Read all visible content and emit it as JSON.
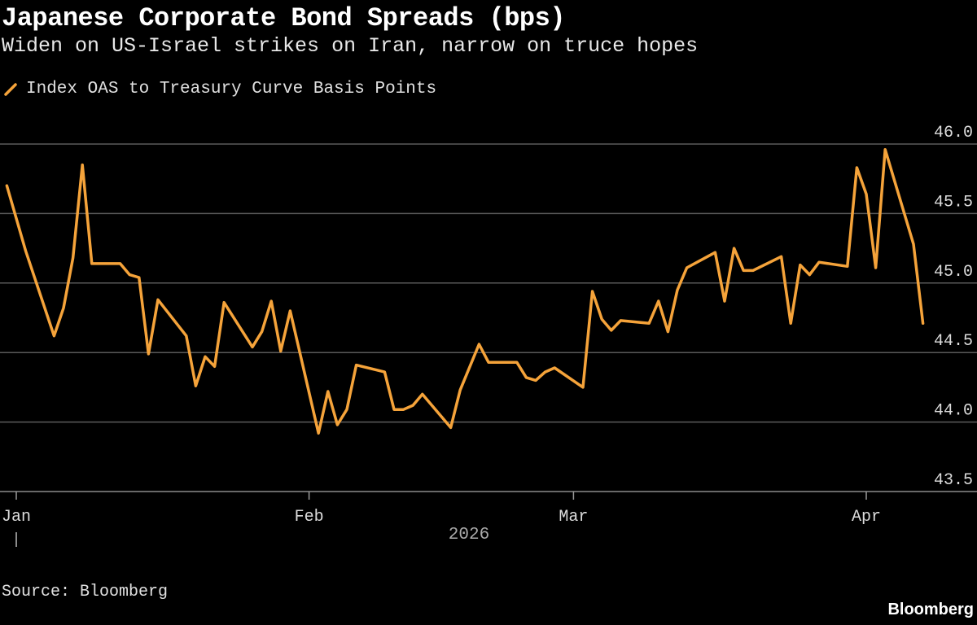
{
  "title": "Japanese Corporate Bond Spreads (bps)",
  "subtitle": "Widen on US-Israel strikes on Iran, narrow on truce hopes",
  "source": "Source: Bloomberg",
  "brand": "Bloomberg",
  "colors": {
    "background": "#000000",
    "series": "#f5a33a",
    "grid": "#5a5a5a",
    "text": "#dcdcdc"
  },
  "chart_data": {
    "type": "line",
    "title": "Japanese Corporate Bond Spreads (bps)",
    "subtitle": "Widen on US-Israel strikes on Iran, narrow on truce hopes",
    "xlabel": "2026",
    "ylabel": "",
    "ylim": [
      43.5,
      46.0
    ],
    "yticks": [
      "43.5",
      "44.0",
      "44.5",
      "45.0",
      "45.5",
      "46.0"
    ],
    "xticks": [
      {
        "date": "2026-01-01",
        "label": "Jan"
      },
      {
        "date": "2026-02-01",
        "label": "Feb"
      },
      {
        "date": "2026-03-01",
        "label": "Mar"
      },
      {
        "date": "2026-04-01",
        "label": "Apr"
      }
    ],
    "year_label": "2026",
    "grid": true,
    "legend_position": "top-left",
    "series": [
      {
        "name": "Index OAS to Treasury Curve Basis Points",
        "color": "#f5a33a",
        "x": [
          "2025-12-31",
          "2026-01-02",
          "2026-01-05",
          "2026-01-06",
          "2026-01-07",
          "2026-01-08",
          "2026-01-09",
          "2026-01-12",
          "2026-01-13",
          "2026-01-14",
          "2026-01-15",
          "2026-01-16",
          "2026-01-19",
          "2026-01-20",
          "2026-01-21",
          "2026-01-22",
          "2026-01-23",
          "2026-01-26",
          "2026-01-27",
          "2026-01-28",
          "2026-01-29",
          "2026-01-30",
          "2026-02-02",
          "2026-02-03",
          "2026-02-04",
          "2026-02-05",
          "2026-02-06",
          "2026-02-09",
          "2026-02-10",
          "2026-02-11",
          "2026-02-12",
          "2026-02-13",
          "2026-02-16",
          "2026-02-17",
          "2026-02-19",
          "2026-02-20",
          "2026-02-23",
          "2026-02-24",
          "2026-02-25",
          "2026-02-26",
          "2026-02-27",
          "2026-03-02",
          "2026-03-03",
          "2026-03-04",
          "2026-03-05",
          "2026-03-06",
          "2026-03-09",
          "2026-03-10",
          "2026-03-11",
          "2026-03-12",
          "2026-03-13",
          "2026-03-16",
          "2026-03-17",
          "2026-03-18",
          "2026-03-19",
          "2026-03-20",
          "2026-03-23",
          "2026-03-24",
          "2026-03-25",
          "2026-03-26",
          "2026-03-27",
          "2026-03-30",
          "2026-03-31",
          "2026-04-01",
          "2026-04-02",
          "2026-04-03",
          "2026-04-06",
          "2026-04-07"
        ],
        "values": [
          45.7,
          45.23,
          44.62,
          44.82,
          45.18,
          45.85,
          45.14,
          45.14,
          45.06,
          45.04,
          44.49,
          44.88,
          44.62,
          44.26,
          44.47,
          44.4,
          44.86,
          44.54,
          44.65,
          44.87,
          44.51,
          44.8,
          43.92,
          44.22,
          43.98,
          44.09,
          44.41,
          44.36,
          44.09,
          44.09,
          44.12,
          44.2,
          43.96,
          44.23,
          44.56,
          44.43,
          44.43,
          44.32,
          44.3,
          44.36,
          44.39,
          44.25,
          44.94,
          44.74,
          44.66,
          44.73,
          44.71,
          44.87,
          44.65,
          44.95,
          45.11,
          45.22,
          44.87,
          45.25,
          45.09,
          45.09,
          45.19,
          44.71,
          45.13,
          45.06,
          45.15,
          45.12,
          45.83,
          45.64,
          45.11,
          45.96,
          45.28,
          44.71
        ]
      }
    ]
  }
}
